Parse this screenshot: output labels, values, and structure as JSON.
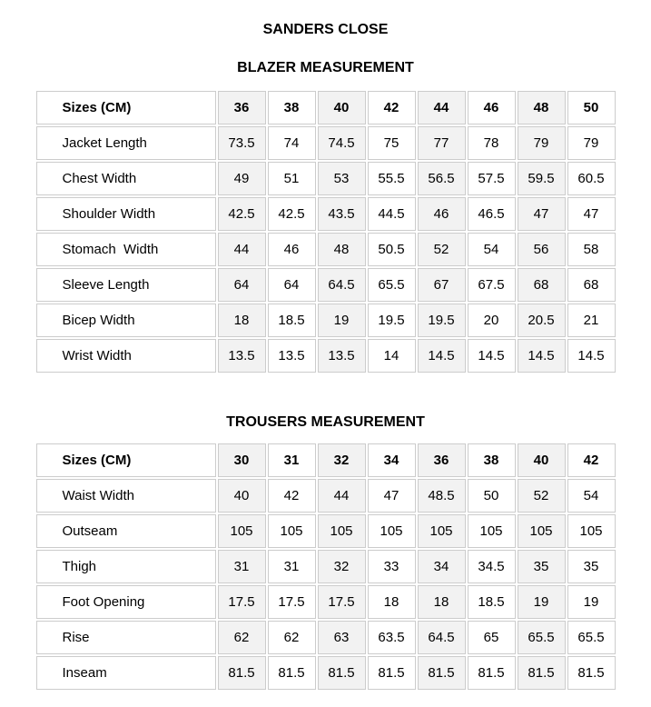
{
  "page": {
    "title": "SANDERS CLOSE"
  },
  "tables": [
    {
      "name": "blazer",
      "heading": "BLAZER MEASUREMENT",
      "header_label": "Sizes (CM)",
      "sizes": [
        "36",
        "38",
        "40",
        "42",
        "44",
        "46",
        "48",
        "50"
      ],
      "rows": [
        {
          "label": "Jacket Length",
          "values": [
            "73.5",
            "74",
            "74.5",
            "75",
            "77",
            "78",
            "79",
            "79"
          ]
        },
        {
          "label": "Chest Width",
          "values": [
            "49",
            "51",
            "53",
            "55.5",
            "56.5",
            "57.5",
            "59.5",
            "60.5"
          ]
        },
        {
          "label": "Shoulder Width",
          "values": [
            "42.5",
            "42.5",
            "43.5",
            "44.5",
            "46",
            "46.5",
            "47",
            "47"
          ]
        },
        {
          "label": "Stomach  Width",
          "values": [
            "44",
            "46",
            "48",
            "50.5",
            "52",
            "54",
            "56",
            "58"
          ]
        },
        {
          "label": "Sleeve Length",
          "values": [
            "64",
            "64",
            "64.5",
            "65.5",
            "67",
            "67.5",
            "68",
            "68"
          ]
        },
        {
          "label": "Bicep Width",
          "values": [
            "18",
            "18.5",
            "19",
            "19.5",
            "19.5",
            "20",
            "20.5",
            "21"
          ]
        },
        {
          "label": "Wrist Width",
          "values": [
            "13.5",
            "13.5",
            "13.5",
            "14",
            "14.5",
            "14.5",
            "14.5",
            "14.5"
          ]
        }
      ]
    },
    {
      "name": "trousers",
      "heading": "TROUSERS MEASUREMENT",
      "header_label": "Sizes (CM)",
      "sizes": [
        "30",
        "31",
        "32",
        "34",
        "36",
        "38",
        "40",
        "42"
      ],
      "rows": [
        {
          "label": "Waist Width",
          "values": [
            "40",
            "42",
            "44",
            "47",
            "48.5",
            "50",
            "52",
            "54"
          ]
        },
        {
          "label": "Outseam",
          "values": [
            "105",
            "105",
            "105",
            "105",
            "105",
            "105",
            "105",
            "105"
          ]
        },
        {
          "label": "Thigh",
          "values": [
            "31",
            "31",
            "32",
            "33",
            "34",
            "34.5",
            "35",
            "35"
          ]
        },
        {
          "label": "Foot Opening",
          "values": [
            "17.5",
            "17.5",
            "17.5",
            "18",
            "18",
            "18.5",
            "19",
            "19"
          ]
        },
        {
          "label": "Rise",
          "values": [
            "62",
            "62",
            "63",
            "63.5",
            "64.5",
            "65",
            "65.5",
            "65.5"
          ]
        },
        {
          "label": "Inseam",
          "values": [
            "81.5",
            "81.5",
            "81.5",
            "81.5",
            "81.5",
            "81.5",
            "81.5",
            "81.5"
          ]
        }
      ]
    }
  ],
  "colors": {
    "stripe_column_bg": "#f2f2f2",
    "cell_border": "#cccccc",
    "text": "#000000",
    "background": "#ffffff"
  }
}
